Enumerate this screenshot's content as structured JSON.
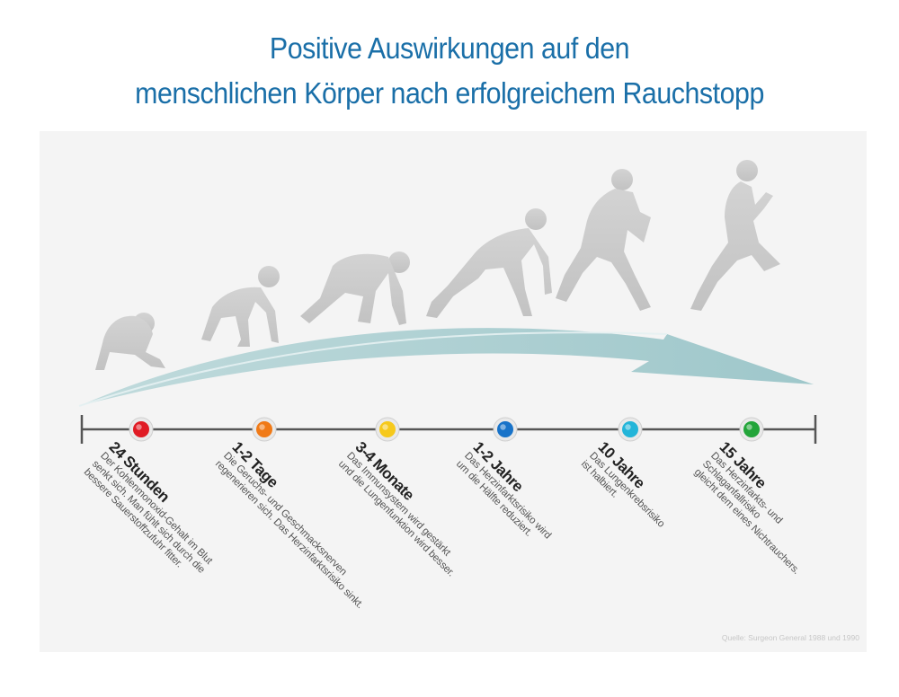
{
  "title": {
    "line1": "Positive Auswirkungen auf den",
    "line2": "menschlichen Körper nach erfolgreichem Rauchstopp"
  },
  "milestones": [
    {
      "label": "24 Stunden",
      "text": "Der Kohlenmonoxid-Gehalt im Blut\nsenkt sich. Man fühlt sich durch die\nbessere Sauerstoffzufuhr fitter.",
      "color": "#e01b24"
    },
    {
      "label": "1-2 Tage",
      "text": "Die Geruchs- und Geschmacksnerven\nregenerieren sich. Das Herzinfarktsrisiko sinkt.",
      "color": "#f07a17"
    },
    {
      "label": "3-4 Monate",
      "text": "Das Immunsystem wird gestärkt\nund die Lungenfunktion wird besser.",
      "color": "#f6c91c"
    },
    {
      "label": "1-2 Jahre",
      "text": "Das Herzinfarktsrisiko wird\num die Hälfte reduziert.",
      "color": "#1873c9"
    },
    {
      "label": "10 Jahre",
      "text": "Das Lungenkrebsrisiko\nist halbiert.",
      "color": "#23b5d9"
    },
    {
      "label": "15 Jahre",
      "text": "Das Herzinfarkts- und Schlaganfallrisiko\ngleicht dem eines Nichtrauchers.",
      "color": "#23a53a"
    }
  ],
  "source": "Quelle:  Surgeon General 1988 und 1990",
  "figure_icons": [
    "crouching-person-icon",
    "rising-person-icon",
    "starting-block-person-icon",
    "lunging-person-icon",
    "running-person-icon",
    "sprinting-person-icon"
  ]
}
